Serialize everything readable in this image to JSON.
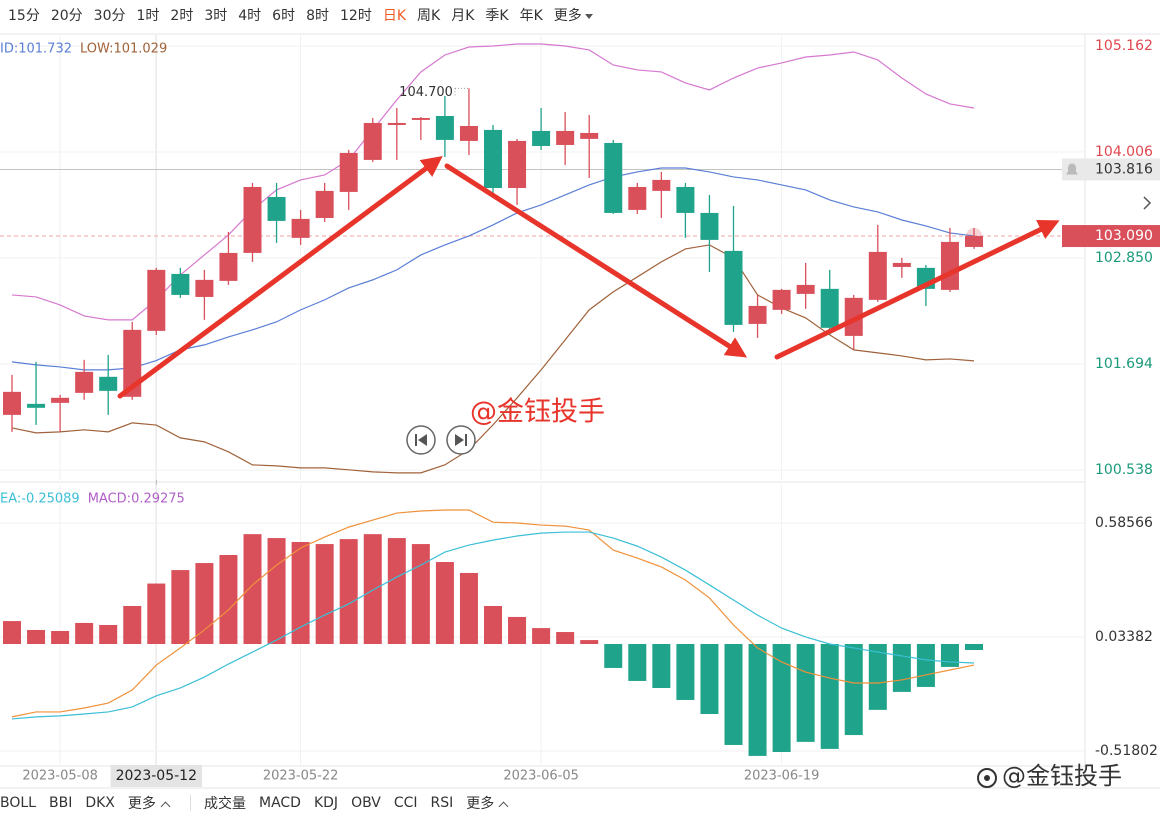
{
  "toolbar": {
    "periods": [
      "15分",
      "20分",
      "30分",
      "1时",
      "2时",
      "3时",
      "4时",
      "6时",
      "8时",
      "12时",
      "日K",
      "周K",
      "月K",
      "季K",
      "年K"
    ],
    "active_index": 10,
    "more": "更多"
  },
  "chart_data": [
    {
      "type": "candlestick",
      "categories": [
        null,
        null,
        "2023-05-08",
        null,
        null,
        null,
        "2023-05-12",
        null,
        null,
        null,
        null,
        null,
        "2023-05-22",
        null,
        null,
        null,
        null,
        null,
        null,
        null,
        null,
        null,
        "2023-06-05",
        null,
        null,
        null,
        null,
        null,
        null,
        null,
        null,
        null,
        "2023-06-19",
        null,
        null,
        null,
        null,
        null,
        null,
        null,
        null
      ],
      "open": [
        101.14,
        101.26,
        101.271,
        101.38,
        101.555,
        101.337,
        102.056,
        102.677,
        102.426,
        102.601,
        102.906,
        103.516,
        103.07,
        103.287,
        103.571,
        103.92,
        104.301,
        104.356,
        104.399,
        104.127,
        104.247,
        103.614,
        104.236,
        104.083,
        104.149,
        104.105,
        103.375,
        103.582,
        103.625,
        103.342,
        102.928,
        102.132,
        102.285,
        102.459,
        102.514,
        102.001,
        102.394,
        102.753,
        102.743,
        102.503,
        102.971
      ],
      "high": [
        101.576,
        101.718,
        101.358,
        101.74,
        101.794,
        102.154,
        102.743,
        102.743,
        102.721,
        103.135,
        103.669,
        103.669,
        103.375,
        103.669,
        104.029,
        104.377,
        104.486,
        104.388,
        104.617,
        104.7,
        104.301,
        104.149,
        104.486,
        104.443,
        104.41,
        104.138,
        103.669,
        103.789,
        103.669,
        103.538,
        103.418,
        102.448,
        102.514,
        102.797,
        102.721,
        102.448,
        103.211,
        102.852,
        102.775,
        103.179,
        103.179
      ],
      "low": [
        100.955,
        101.031,
        100.955,
        101.304,
        101.14,
        101.304,
        102.012,
        102.416,
        102.176,
        102.557,
        102.808,
        103.015,
        102.993,
        103.244,
        103.375,
        103.898,
        103.92,
        104.138,
        103.952,
        103.974,
        103.56,
        103.429,
        104.029,
        103.865,
        103.723,
        103.331,
        103.331,
        103.287,
        103.07,
        102.699,
        102.045,
        101.98,
        102.241,
        102.296,
        102.012,
        101.849,
        102.372,
        102.634,
        102.328,
        102.481,
        102.95
      ],
      "close": [
        101.391,
        101.217,
        101.326,
        101.609,
        101.402,
        102.067,
        102.721,
        102.448,
        102.612,
        102.906,
        103.625,
        103.255,
        103.277,
        103.582,
        103.996,
        104.323,
        104.323,
        104.377,
        104.138,
        104.29,
        103.614,
        104.127,
        104.072,
        104.236,
        104.214,
        103.342,
        103.625,
        103.702,
        103.342,
        103.048,
        102.121,
        102.328,
        102.503,
        102.557,
        102.089,
        102.416,
        102.917,
        102.797,
        102.514,
        103.026,
        103.09
      ],
      "up_color": "#d9505b",
      "down_color": "#1fa38a",
      "series": [
        {
          "color": "#d678d0",
          "values": [
            102.448,
            102.426,
            102.339,
            102.219,
            102.176,
            102.176,
            102.394,
            102.666,
            102.884,
            103.102,
            103.375,
            103.593,
            103.702,
            103.756,
            103.92,
            104.247,
            104.574,
            104.879,
            105.064,
            105.151,
            105.162,
            105.184,
            105.184,
            105.162,
            105.119,
            104.955,
            104.901,
            104.879,
            104.759,
            104.683,
            104.813,
            104.922,
            104.977,
            105.042,
            105.064,
            105.097,
            105.01,
            104.813,
            104.639,
            104.53,
            104.486
          ]
        },
        {
          "name": "ID:101.732",
          "color": "#5b7fd6",
          "values": [
            101.718,
            101.685,
            101.663,
            101.631,
            101.631,
            101.652,
            101.732,
            101.849,
            101.903,
            101.99,
            102.067,
            102.154,
            102.285,
            102.394,
            102.524,
            102.612,
            102.721,
            102.884,
            102.993,
            103.091,
            103.211,
            103.342,
            103.429,
            103.538,
            103.647,
            103.734,
            103.789,
            103.832,
            103.832,
            103.789,
            103.734,
            103.702,
            103.647,
            103.593,
            103.484,
            103.407,
            103.353,
            103.265,
            103.2,
            103.124,
            103.091
          ]
        },
        {
          "name": "LOW:101.029",
          "color": "#a0623a",
          "values": [
            100.998,
            100.944,
            100.955,
            100.977,
            100.955,
            101.053,
            101.029,
            100.889,
            100.846,
            100.737,
            100.595,
            100.584,
            100.562,
            100.562,
            100.541,
            100.519,
            100.508,
            100.508,
            100.595,
            100.759,
            101.031,
            101.325,
            101.631,
            101.958,
            102.285,
            102.481,
            102.644,
            102.808,
            102.949,
            102.993,
            102.851,
            102.448,
            102.306,
            102.197,
            102.012,
            101.849,
            101.816,
            101.783,
            101.74,
            101.75,
            101.729
          ]
        }
      ],
      "ylim": [
        100.43,
        105.282
      ],
      "yticks": [
        105.162,
        104.006,
        {
          "value": 102.85,
          "label": "102.850"
        },
        101.694,
        100.538
      ],
      "grid": true,
      "crosshair_index": 6,
      "max_label": "104.700",
      "hlines": [
        {
          "value": 103.816,
          "color": "#c4c4c4",
          "box": "#e9e9e9",
          "text_color": "#333333"
        },
        {
          "value": 103.09,
          "label": "103.090",
          "color": "#f2a3ab",
          "box": "#d9505b",
          "text_color": "#ffffff",
          "dashed": true
        }
      ]
    },
    {
      "type": "macd",
      "series": [
        {
          "color": "#f0913a",
          "values": [
            -0.353,
            -0.329,
            -0.329,
            -0.31,
            -0.286,
            -0.223,
            -0.102,
            -0.019,
            0.068,
            0.165,
            0.286,
            0.382,
            0.465,
            0.518,
            0.566,
            0.6,
            0.634,
            0.644,
            0.649,
            0.649,
            0.59,
            0.586,
            0.576,
            0.571,
            0.552,
            0.455,
            0.416,
            0.373,
            0.31,
            0.223,
            0.092,
            -0.019,
            -0.087,
            -0.136,
            -0.165,
            -0.189,
            -0.189,
            -0.174,
            -0.15,
            -0.126,
            -0.102
          ]
        },
        {
          "name": "EA:-0.25089",
          "color": "#3bbfd6",
          "values": [
            -0.363,
            -0.353,
            -0.348,
            -0.339,
            -0.329,
            -0.305,
            -0.25089,
            -0.213,
            -0.16,
            -0.097,
            -0.039,
            0.019,
            0.082,
            0.14,
            0.194,
            0.261,
            0.324,
            0.382,
            0.445,
            0.479,
            0.503,
            0.523,
            0.537,
            0.542,
            0.542,
            0.513,
            0.474,
            0.421,
            0.358,
            0.286,
            0.213,
            0.14,
            0.077,
            0.034,
            0,
            -0.019,
            -0.039,
            -0.058,
            -0.077,
            -0.087,
            -0.092
          ]
        },
        {
          "name": "MACD:0.29275",
          "kind": "bar",
          "color": "#b05fc8",
          "up_color": "#d9505b",
          "down_color": "#1fa38a",
          "values": [
            0.111,
            0.068,
            0.063,
            0.102,
            0.092,
            0.184,
            0.29275,
            0.358,
            0.392,
            0.431,
            0.532,
            0.513,
            0.494,
            0.484,
            0.508,
            0.532,
            0.513,
            0.484,
            0.397,
            0.344,
            0.184,
            0.131,
            0.077,
            0.058,
            0.019,
            -0.116,
            -0.179,
            -0.213,
            -0.271,
            -0.339,
            -0.489,
            -0.542,
            -0.523,
            -0.474,
            -0.508,
            -0.441,
            -0.319,
            -0.232,
            -0.208,
            -0.111,
            -0.029
          ]
        }
      ],
      "ylim": [
        -0.586,
        0.77
      ],
      "yticks": [
        0.58566,
        0.03382,
        -0.51802
      ]
    }
  ],
  "watermark": "@金钰投手",
  "corner_watermark": "@金钰投手",
  "indicator_tabs": {
    "main": [
      "BOLL",
      "BBI",
      "DKX"
    ],
    "main_more": "更多",
    "sub": [
      "成交量",
      "MACD",
      "KDJ",
      "OBV",
      "CCI",
      "RSI"
    ],
    "sub_more": "更多"
  }
}
